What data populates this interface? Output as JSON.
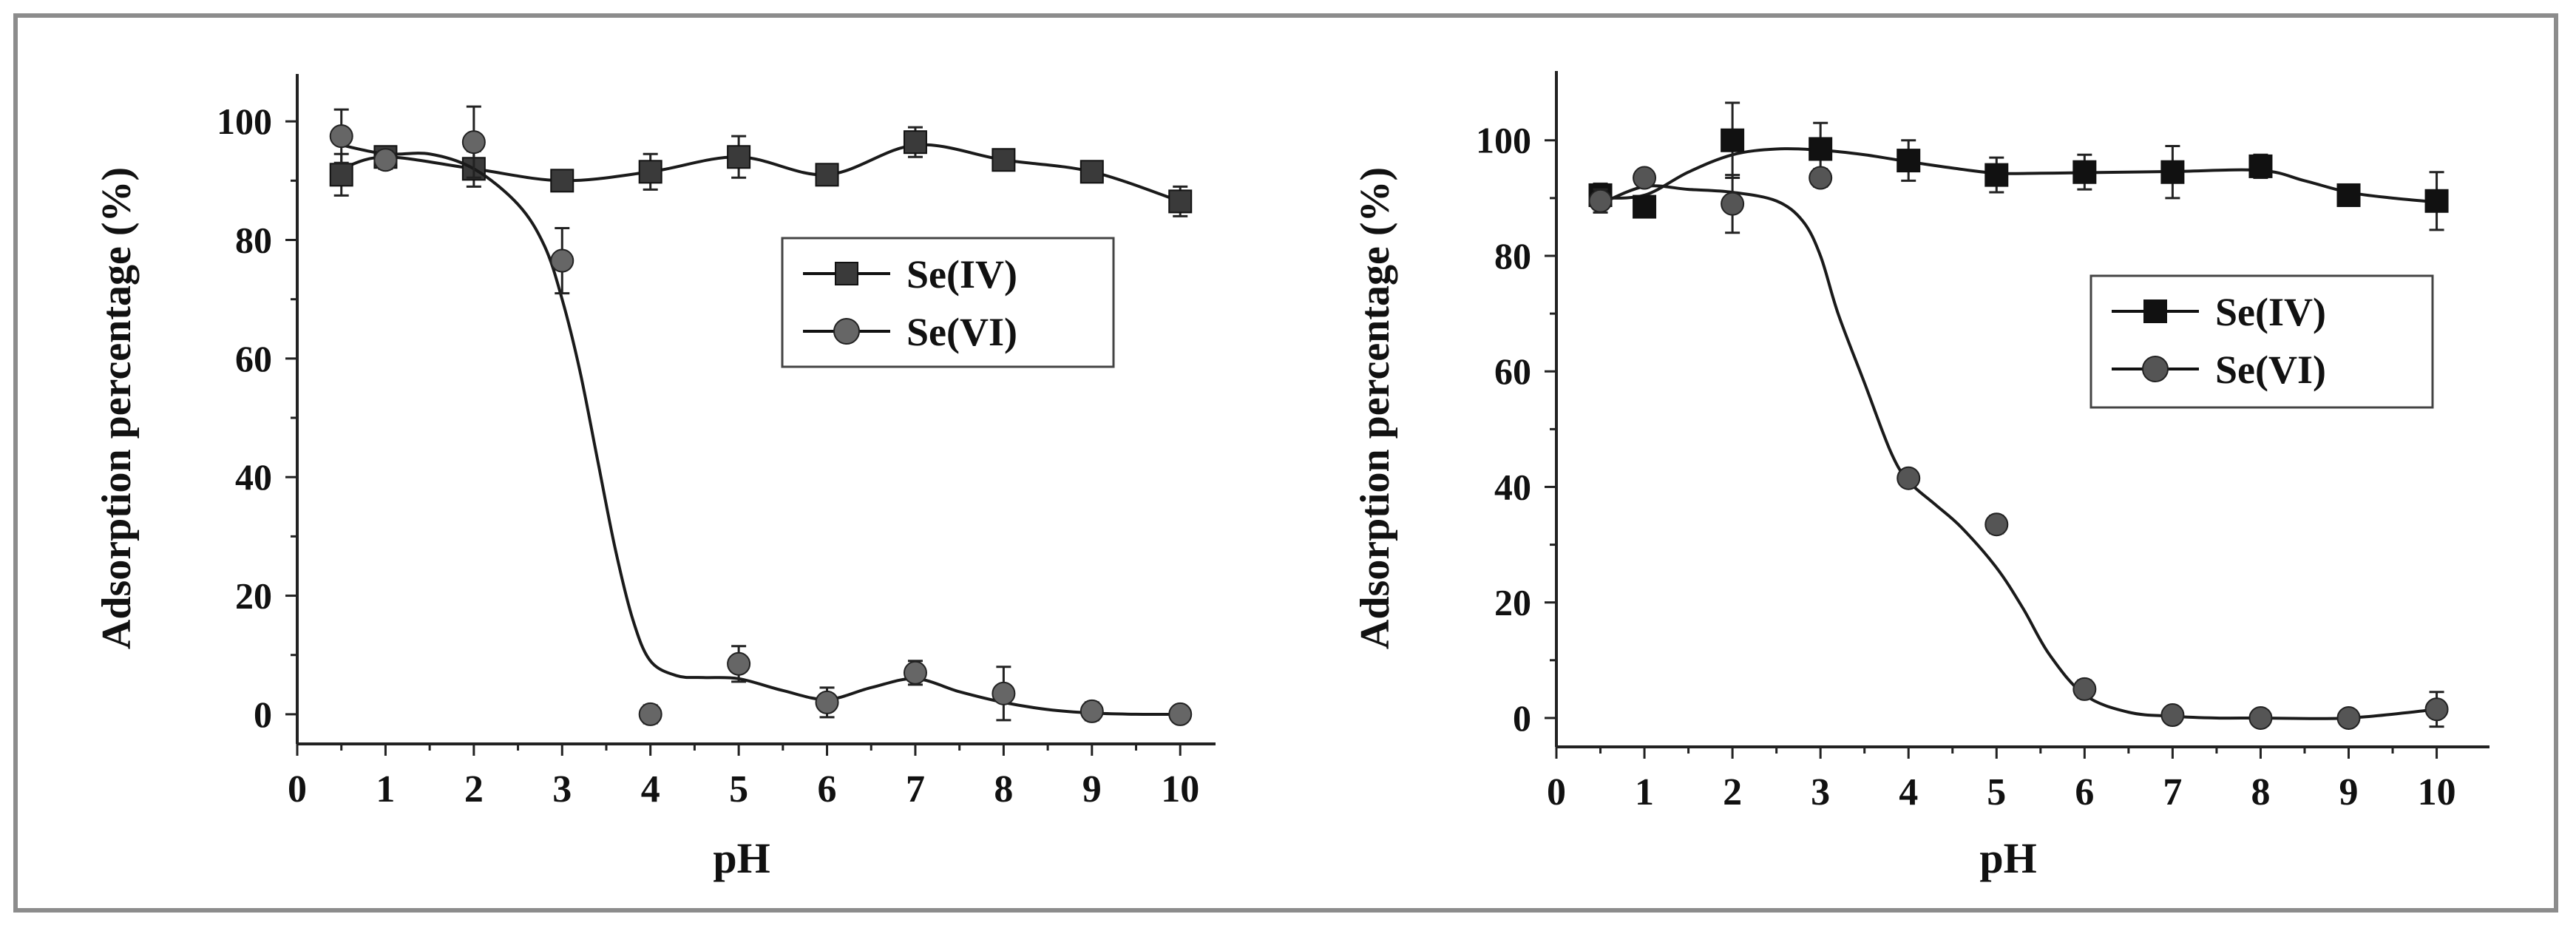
{
  "chart_data": [
    {
      "type": "line",
      "xlabel": "pH",
      "ylabel": "Adsorption percentage (%)",
      "xlim": [
        0,
        10.4
      ],
      "ylim": [
        -5,
        108
      ],
      "xticks": [
        0,
        1,
        2,
        3,
        4,
        5,
        6,
        7,
        8,
        9,
        10
      ],
      "yticks": [
        0,
        20,
        40,
        60,
        80,
        100
      ],
      "legend_position": "center-right",
      "series": [
        {
          "name": "Se(IV)",
          "marker": "square",
          "color": "#3a3a3a",
          "x": [
            0.5,
            1,
            2,
            3,
            4,
            5,
            6,
            7,
            8,
            9,
            10
          ],
          "y": [
            91,
            94,
            92,
            90,
            91.5,
            94,
            91,
            96.5,
            93.5,
            91.5,
            86.5
          ],
          "err": [
            3.5,
            1.5,
            3,
            1.5,
            3,
            3.5,
            1.5,
            2.5,
            1.5,
            1.5,
            2.5
          ],
          "curve_x": [
            0.5,
            1,
            2,
            3,
            4,
            5,
            6,
            7,
            8,
            9,
            10
          ],
          "curve_y": [
            92,
            94,
            92,
            90,
            91.5,
            94,
            91,
            96,
            93.5,
            91.5,
            86.5
          ]
        },
        {
          "name": "Se(VI)",
          "marker": "circle",
          "color": "#666666",
          "x": [
            0.5,
            1,
            2,
            3,
            4,
            5,
            6,
            7,
            8,
            9,
            10
          ],
          "y": [
            97.5,
            93.5,
            96.5,
            76.5,
            0,
            8.5,
            2,
            7,
            3.5,
            0.5,
            0
          ],
          "err": [
            4.5,
            1.5,
            6,
            5.5,
            1.5,
            3,
            2.5,
            2,
            4.5,
            1.5,
            0.5
          ],
          "curve_x": [
            0.5,
            1,
            1.5,
            2,
            2.5,
            2.8,
            3,
            3.2,
            3.4,
            3.6,
            3.8,
            4,
            4.3,
            4.6,
            5,
            5.5,
            6,
            6.5,
            7,
            7.5,
            8,
            8.5,
            9,
            9.5,
            10
          ],
          "curve_y": [
            96,
            94.5,
            94.5,
            92,
            86,
            79,
            70,
            58,
            43,
            28,
            16,
            9,
            6.5,
            6.2,
            6,
            4,
            2.5,
            4.5,
            6,
            3.8,
            2,
            0.8,
            0.2,
            0,
            0
          ]
        }
      ]
    },
    {
      "type": "line",
      "xlabel": "pH",
      "ylabel": "Adsorption percentage (%)",
      "xlim": [
        0,
        10.6
      ],
      "ylim": [
        -5,
        112
      ],
      "xticks": [
        0,
        1,
        2,
        3,
        4,
        5,
        6,
        7,
        8,
        9,
        10
      ],
      "yticks": [
        0,
        20,
        40,
        60,
        80,
        100
      ],
      "legend_position": "center-right",
      "series": [
        {
          "name": "Se(IV)",
          "marker": "square",
          "color": "#111111",
          "x": [
            0.5,
            1,
            2,
            3,
            4,
            5,
            6,
            7,
            8,
            9,
            10
          ],
          "y": [
            90.5,
            88.5,
            100,
            98.5,
            96.5,
            94,
            94.5,
            94.5,
            95.5,
            90.5,
            89.5
          ],
          "err": [
            2,
            1.5,
            6.5,
            4.5,
            3.5,
            3,
            3,
            4.5,
            2,
            1,
            5
          ],
          "curve_x": [
            0.5,
            1,
            1.5,
            2,
            2.5,
            3,
            3.5,
            4,
            4.5,
            5,
            5.5,
            6,
            7,
            8,
            8.5,
            9,
            9.5,
            10
          ],
          "curve_y": [
            90,
            90.5,
            94.5,
            97.5,
            98.5,
            98.3,
            97.5,
            96.3,
            95.2,
            94.3,
            94.3,
            94.4,
            94.6,
            94.8,
            93,
            91,
            90,
            89.3
          ]
        },
        {
          "name": "Se(VI)",
          "marker": "circle",
          "color": "#555555",
          "x": [
            0.5,
            1,
            2,
            3,
            4,
            5,
            6,
            7,
            8,
            9,
            10
          ],
          "y": [
            89.5,
            93.5,
            89,
            93.5,
            41.5,
            33.5,
            5,
            0.5,
            0,
            0,
            1.5
          ],
          "err": [
            2,
            1,
            5,
            1.5,
            1,
            1.5,
            1.5,
            0.5,
            0.5,
            0.5,
            3
          ],
          "curve_x": [
            0.5,
            1,
            1.5,
            2,
            2.5,
            2.8,
            3,
            3.2,
            3.5,
            3.8,
            4,
            4.3,
            4.6,
            5,
            5.3,
            5.6,
            6,
            6.5,
            7,
            7.5,
            8,
            9,
            10
          ],
          "curve_y": [
            89,
            92,
            91.5,
            91,
            89.5,
            86,
            80,
            70,
            58,
            46,
            41,
            37,
            33,
            26,
            19,
            11,
            4,
            1,
            0.3,
            0,
            0,
            0,
            1.5
          ]
        }
      ]
    }
  ]
}
